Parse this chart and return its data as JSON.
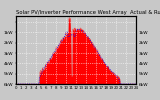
{
  "title": "Solar PV/Inverter Performance West Array  Actual & Running Average Power Output",
  "bg_color": "#c8c8c8",
  "plot_bg_color": "#c8c8c8",
  "fill_color": "#ff0000",
  "avg_color": "#0000ff",
  "ylabel_right": [
    "6kW",
    "5kW",
    "4kW",
    "3kW",
    "2kW",
    "1kW",
    ""
  ],
  "ylabel_left": [
    "6kW",
    "5kW",
    "4kW",
    "3kW",
    "2kW",
    "1kW",
    ""
  ],
  "ylim": [
    0,
    6600
  ],
  "yticks": [
    0,
    1000,
    2000,
    3000,
    4000,
    5000,
    6000
  ],
  "n_points": 288,
  "grid_color": "#aaaaaa",
  "text_color": "#000000",
  "title_fontsize": 3.8,
  "tick_fontsize": 3.2,
  "legend_fontsize": 3.0,
  "n_vgrid": 12
}
